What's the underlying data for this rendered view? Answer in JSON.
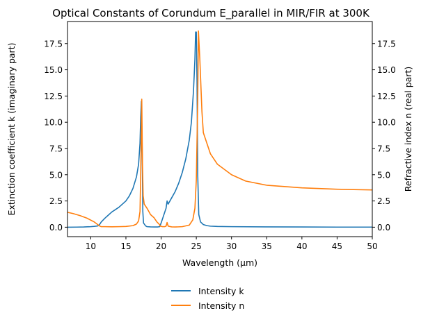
{
  "chart_data": {
    "type": "line",
    "title": "Optical Constants of Corundum E_parallel in MIR/FIR at 300K",
    "xlabel": "Wavelength (μm)",
    "ylabel_left": "Extinction coefficient k (imaginary part)",
    "ylabel_right": "Refractive index n (real part)",
    "xlim": [
      6.7,
      50
    ],
    "ylim_left": [
      -0.9,
      19.6
    ],
    "ylim_right": [
      -0.9,
      19.6
    ],
    "x_ticks": [
      10,
      15,
      20,
      25,
      30,
      35,
      40,
      45,
      50
    ],
    "x_tick_labels": [
      "10",
      "15",
      "20",
      "25",
      "30",
      "35",
      "40",
      "45",
      "50"
    ],
    "y_ticks": [
      0,
      2.5,
      5,
      7.5,
      10,
      12.5,
      15,
      17.5
    ],
    "y_tick_labels": [
      "0.0",
      "2.5",
      "5.0",
      "7.5",
      "10.0",
      "12.5",
      "15.0",
      "17.5"
    ],
    "grid": false,
    "legend_position": "below-center",
    "colors": {
      "k": "#1f77b4",
      "n": "#ff7f0e"
    },
    "series": [
      {
        "name": "Intensity k",
        "axis": "left",
        "x": [
          6.7,
          8,
          9,
          10,
          10.5,
          11,
          11.2,
          11.5,
          12,
          12.5,
          13,
          14,
          15,
          15.5,
          16,
          16.5,
          16.8,
          17.0,
          17.1,
          17.2,
          17.3,
          17.4,
          17.5,
          17.8,
          18,
          18.5,
          19,
          19.5,
          19.8,
          20.0,
          20.3,
          20.7,
          20.85,
          21.0,
          21.5,
          22,
          22.5,
          23,
          23.5,
          24,
          24.3,
          24.6,
          24.8,
          24.9,
          25.0,
          25.1,
          25.2,
          25.35,
          25.6,
          26,
          26.5,
          27,
          28,
          30,
          35,
          40,
          45,
          50
        ],
        "y": [
          0.0,
          0.01,
          0.02,
          0.05,
          0.08,
          0.12,
          0.2,
          0.5,
          0.85,
          1.15,
          1.45,
          1.9,
          2.5,
          3.0,
          3.7,
          4.8,
          6.0,
          8.0,
          10.5,
          12.0,
          8.0,
          1.5,
          0.4,
          0.12,
          0.05,
          0.03,
          0.02,
          0.02,
          0.05,
          0.4,
          1.0,
          1.8,
          2.5,
          2.2,
          2.8,
          3.4,
          4.2,
          5.2,
          6.5,
          8.3,
          10.0,
          13.0,
          16.0,
          18.6,
          18.6,
          14.0,
          5.0,
          1.2,
          0.5,
          0.25,
          0.15,
          0.1,
          0.07,
          0.05,
          0.03,
          0.02,
          0.01,
          0.01
        ]
      },
      {
        "name": "Intensity n",
        "axis": "right",
        "x": [
          6.7,
          7.5,
          8.5,
          9.5,
          10.5,
          11.0,
          11.3,
          11.5,
          12,
          13,
          14,
          15,
          16,
          16.5,
          16.8,
          17.0,
          17.1,
          17.25,
          17.35,
          17.45,
          17.6,
          18,
          18.5,
          19,
          19.4,
          19.7,
          19.9,
          20.2,
          20.5,
          20.7,
          20.85,
          21.0,
          21.5,
          22,
          23,
          24,
          24.5,
          24.8,
          25.0,
          25.2,
          25.3,
          25.5,
          25.8,
          26,
          27,
          28,
          30,
          32,
          35,
          40,
          45,
          50
        ],
        "y": [
          1.42,
          1.3,
          1.1,
          0.85,
          0.5,
          0.25,
          0.1,
          0.05,
          0.05,
          0.04,
          0.05,
          0.07,
          0.15,
          0.3,
          0.6,
          1.5,
          5.0,
          12.2,
          6.0,
          3.0,
          2.2,
          1.8,
          1.2,
          0.9,
          0.5,
          0.3,
          0.1,
          0.05,
          0.05,
          0.1,
          0.45,
          0.1,
          0.03,
          0.02,
          0.05,
          0.2,
          0.7,
          1.8,
          4.5,
          12.0,
          18.7,
          16.0,
          11.0,
          9.0,
          7.0,
          6.0,
          5.0,
          4.4,
          4.0,
          3.75,
          3.62,
          3.55
        ]
      }
    ]
  }
}
